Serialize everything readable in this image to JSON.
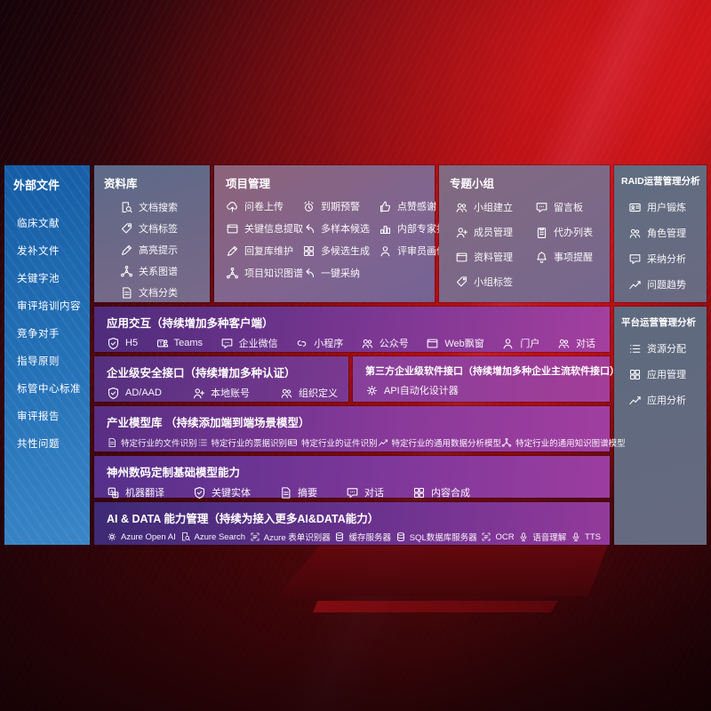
{
  "colors": {
    "sidebar_blue": "#2572b8",
    "panel_slate": "#66707f",
    "band_purple_dark": "#4e2c7c",
    "band_purple_bright": "#a33f9f",
    "background_red": "#c01015"
  },
  "sidebar": {
    "title": "外部文件",
    "items": [
      {
        "label": "临床文献",
        "name": "sidebar-item-clinical-literature"
      },
      {
        "label": "发补文件",
        "name": "sidebar-item-supplement-files"
      },
      {
        "label": "关键字池",
        "name": "sidebar-item-keyword-pool"
      },
      {
        "label": "审评培训内容",
        "name": "sidebar-item-review-training"
      },
      {
        "label": "竞争对手",
        "name": "sidebar-item-competitors"
      },
      {
        "label": "指导原则",
        "name": "sidebar-item-guidelines"
      },
      {
        "label": "标管中心标准",
        "name": "sidebar-item-standards-center"
      },
      {
        "label": "审评报告",
        "name": "sidebar-item-review-reports"
      },
      {
        "label": "共性问题",
        "name": "sidebar-item-common-issues"
      }
    ]
  },
  "library": {
    "title": "资料库",
    "items": [
      {
        "label": "文档搜索",
        "name": "library-item-doc-search",
        "icon": "doc-search-icon",
        "sym": "search-doc"
      },
      {
        "label": "文档标签",
        "name": "library-item-doc-tag",
        "icon": "tag-icon",
        "sym": "tag"
      },
      {
        "label": "高亮提示",
        "name": "library-item-highlight",
        "icon": "highlight-pen-icon",
        "sym": "pencil"
      },
      {
        "label": "关系图谱",
        "name": "library-item-relation-graph",
        "icon": "relation-graph-icon",
        "sym": "graph"
      },
      {
        "label": "文档分类",
        "name": "library-item-doc-classify",
        "icon": "doc-classify-icon",
        "sym": "doc"
      }
    ]
  },
  "project": {
    "title": "项目管理",
    "items": [
      {
        "label": "问卷上传",
        "name": "project-item-survey-upload",
        "icon": "cloud-upload-icon",
        "sym": "cloud-up"
      },
      {
        "label": "到期预警",
        "name": "project-item-due-alert",
        "icon": "alarm-icon",
        "sym": "alarm"
      },
      {
        "label": "点赞感谢",
        "name": "project-item-like-thanks",
        "icon": "thumbs-up-icon",
        "sym": "thumb"
      },
      {
        "label": "关键信息提取",
        "name": "project-item-key-info-extract",
        "icon": "info-extract-icon",
        "sym": "window"
      },
      {
        "label": "多样本候选",
        "name": "project-item-multi-sample",
        "icon": "multi-sample-icon",
        "sym": "arrow-back"
      },
      {
        "label": "内部专家排名",
        "name": "project-item-expert-ranking",
        "icon": "ranking-icon",
        "sym": "rank"
      },
      {
        "label": "回复库维护",
        "name": "project-item-reply-maintain",
        "icon": "reply-maintain-icon",
        "sym": "pencil"
      },
      {
        "label": "多候选生成",
        "name": "project-item-multi-candidate",
        "icon": "multi-candidate-icon",
        "sym": "grid"
      },
      {
        "label": "评审员画像",
        "name": "project-item-reviewer-portrait",
        "icon": "reviewer-icon",
        "sym": "person"
      },
      {
        "label": "项目知识图谱",
        "name": "project-item-knowledge-graph",
        "icon": "knowledge-graph-icon",
        "sym": "graph"
      },
      {
        "label": "一键采纳",
        "name": "project-item-one-click-adopt",
        "icon": "adopt-arrow-icon",
        "sym": "arrow-back"
      }
    ]
  },
  "groups": {
    "title": "专题小组",
    "items": [
      {
        "label": "小组建立",
        "name": "group-item-create",
        "icon": "group-create-icon",
        "sym": "people"
      },
      {
        "label": "留言板",
        "name": "group-item-message-board",
        "icon": "message-board-icon",
        "sym": "chat"
      },
      {
        "label": "成员管理",
        "name": "group-item-member-manage",
        "icon": "member-manage-icon",
        "sym": "person-add"
      },
      {
        "label": "代办列表",
        "name": "group-item-todo-list",
        "icon": "todo-list-icon",
        "sym": "clipboard"
      },
      {
        "label": "资料管理",
        "name": "group-item-material-manage",
        "icon": "material-manage-icon",
        "sym": "window"
      },
      {
        "label": "事项提醒",
        "name": "group-item-reminder",
        "icon": "bell-icon",
        "sym": "bell"
      },
      {
        "label": "小组标签",
        "name": "group-item-tag",
        "icon": "group-tag-icon",
        "sym": "tag"
      }
    ]
  },
  "raid": {
    "title": "RAID运营管理分析",
    "items": [
      {
        "label": "用户锻炼",
        "name": "raid-item-user-training",
        "icon": "user-card-icon",
        "sym": "idcard"
      },
      {
        "label": "角色管理",
        "name": "raid-item-role-manage",
        "icon": "role-manage-icon",
        "sym": "people"
      },
      {
        "label": "采纳分析",
        "name": "raid-item-adoption-analysis",
        "icon": "qa-analysis-icon",
        "sym": "chat"
      },
      {
        "label": "问题趋势",
        "name": "raid-item-issue-trend",
        "icon": "trend-icon",
        "sym": "trend"
      }
    ]
  },
  "platform": {
    "title": "平台运营管理分析",
    "items": [
      {
        "label": "资源分配",
        "name": "platform-item-resource-alloc",
        "icon": "resource-list-icon",
        "sym": "list"
      },
      {
        "label": "应用管理",
        "name": "platform-item-app-manage",
        "icon": "app-grid-icon",
        "sym": "grid"
      },
      {
        "label": "应用分析",
        "name": "platform-item-app-analysis",
        "icon": "app-analysis-icon",
        "sym": "trend"
      }
    ]
  },
  "bands": {
    "interaction": {
      "title": "应用交互（持续增加多种客户端）",
      "items": [
        {
          "label": "H5",
          "name": "client-h5",
          "icon": "h5-icon",
          "sym": "shield"
        },
        {
          "label": "Teams",
          "name": "client-teams",
          "icon": "teams-icon",
          "sym": "teams"
        },
        {
          "label": "企业微信",
          "name": "client-wechat-work",
          "icon": "wechat-work-icon",
          "sym": "chat"
        },
        {
          "label": "小程序",
          "name": "client-mini-program",
          "icon": "mini-program-icon",
          "sym": "link"
        },
        {
          "label": "公众号",
          "name": "client-official-account",
          "icon": "official-account-icon",
          "sym": "people"
        },
        {
          "label": "Web飘窗",
          "name": "client-web-popup",
          "icon": "web-popup-icon",
          "sym": "window"
        },
        {
          "label": "门户",
          "name": "client-portal",
          "icon": "portal-icon",
          "sym": "person"
        },
        {
          "label": "对话",
          "name": "client-dialog",
          "icon": "dialog-icon",
          "sym": "people"
        }
      ]
    },
    "security": {
      "title": "企业级安全接口（持续增加多种认证）",
      "items": [
        {
          "label": "AD/AAD",
          "name": "auth-ad-aad",
          "icon": "ad-aad-icon",
          "sym": "shield"
        },
        {
          "label": "本地账号",
          "name": "auth-local-account",
          "icon": "local-account-icon",
          "sym": "person-add"
        },
        {
          "label": "组织定义",
          "name": "auth-org-define",
          "icon": "org-define-icon",
          "sym": "people"
        }
      ]
    },
    "thirdparty": {
      "title": "第三方企业级软件接口（持续增加多种企业主流软件接口）",
      "items": [
        {
          "label": "API自动化设计器",
          "name": "api-auto-designer",
          "icon": "api-gear-icon",
          "sym": "gear"
        }
      ]
    },
    "industry": {
      "title": "产业模型库 （持续添加端到端场景模型）",
      "items": [
        {
          "label": "特定行业的文件识别",
          "name": "model-file-recognition",
          "icon": "file-recognition-icon",
          "sym": "doc"
        },
        {
          "label": "特定行业的票据识别",
          "name": "model-invoice-recognition",
          "icon": "invoice-recognition-icon",
          "sym": "list"
        },
        {
          "label": "特定行业的证件识别",
          "name": "model-cert-recognition",
          "icon": "cert-recognition-icon",
          "sym": "idcard"
        },
        {
          "label": "特定行业的通用数据分析模型",
          "name": "model-data-analysis",
          "icon": "data-analysis-icon",
          "sym": "trend"
        },
        {
          "label": "特定行业的通用知识图谱模型",
          "name": "model-knowledge-graph",
          "icon": "kg-model-icon",
          "sym": "graph"
        }
      ]
    },
    "basemodel": {
      "title": "神州数码定制基础模型能力",
      "items": [
        {
          "label": "机器翻译",
          "name": "base-machine-translate",
          "icon": "translate-icon",
          "sym": "translate"
        },
        {
          "label": "关键实体",
          "name": "base-key-entity",
          "icon": "key-entity-icon",
          "sym": "shield"
        },
        {
          "label": "摘要",
          "name": "base-summary",
          "icon": "summary-doc-icon",
          "sym": "doc"
        },
        {
          "label": "对话",
          "name": "base-dialog",
          "icon": "dialog-chat-icon",
          "sym": "chat"
        },
        {
          "label": "内容合成",
          "name": "base-content-synthesis",
          "icon": "synthesis-icon",
          "sym": "grid"
        }
      ]
    },
    "aidata": {
      "title": "AI & DATA 能力管理（持续为接入更多AI&DATA能力）",
      "items": [
        {
          "label": "Azure Open AI",
          "name": "ai-azure-openai",
          "icon": "openai-icon",
          "sym": "gear"
        },
        {
          "label": "Azure Search",
          "name": "ai-azure-search",
          "icon": "azure-search-icon",
          "sym": "search-doc"
        },
        {
          "label": "Azure 表单识别器",
          "name": "ai-form-recognizer",
          "icon": "form-recognizer-icon",
          "sym": "ocr"
        },
        {
          "label": "缓存服务器",
          "name": "ai-cache-server",
          "icon": "cache-server-icon",
          "sym": "db"
        },
        {
          "label": "SQL数据库服务器",
          "name": "ai-sql-server",
          "icon": "sql-db-icon",
          "sym": "db"
        },
        {
          "label": "OCR",
          "name": "ai-ocr",
          "icon": "ocr-icon",
          "sym": "ocr"
        },
        {
          "label": "语音理解",
          "name": "ai-speech-understand",
          "icon": "speech-icon",
          "sym": "mic"
        },
        {
          "label": "TTS",
          "name": "ai-tts",
          "icon": "tts-icon",
          "sym": "mic"
        }
      ]
    }
  }
}
